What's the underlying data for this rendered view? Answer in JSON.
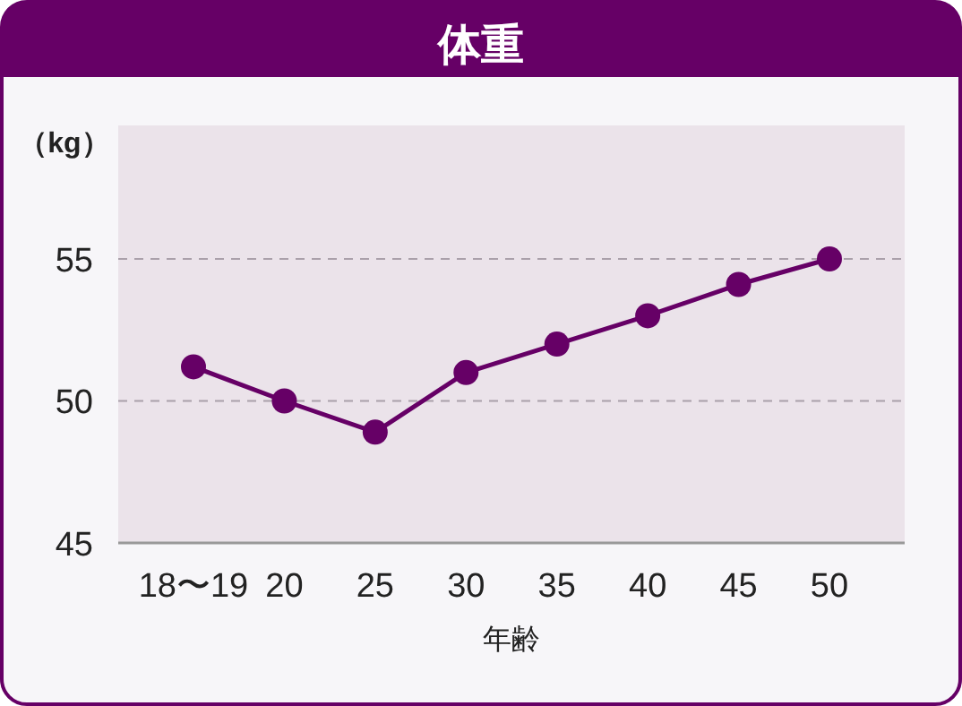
{
  "chart_data": {
    "type": "line",
    "title": "体重",
    "ylabel": "（kg）",
    "xlabel": "年齢",
    "categories": [
      "18〜19",
      "20",
      "25",
      "30",
      "35",
      "40",
      "45",
      "50"
    ],
    "series": [
      {
        "color": "#660066",
        "values": [
          51.2,
          50.0,
          48.9,
          51.0,
          52.0,
          53.0,
          54.1,
          55.0
        ]
      }
    ],
    "ylim": [
      45,
      59.7
    ],
    "yticks": [
      45,
      50,
      55
    ],
    "grid": "y",
    "marker": "circle",
    "line_style": "solid"
  }
}
